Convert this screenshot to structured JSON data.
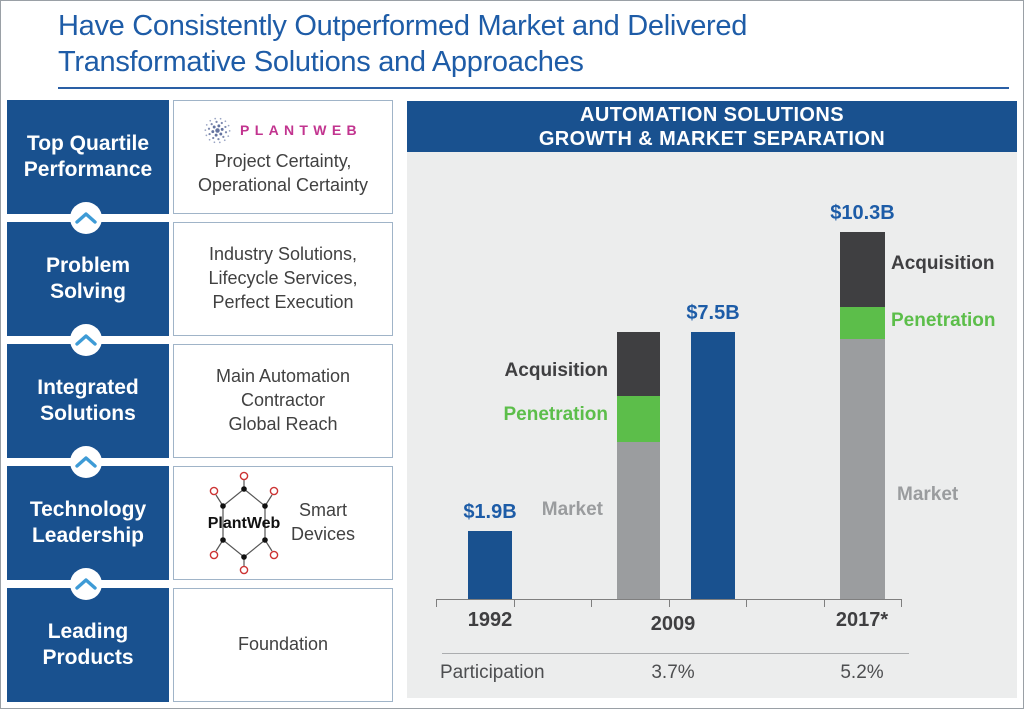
{
  "slide": {
    "title_line1": "Have Consistently Outperformed Market and Delivered",
    "title_line2": "Transformative Solutions and Approaches"
  },
  "pillars": [
    {
      "label": "Top Quartile\nPerformance",
      "logo_text": "PLANTWEB",
      "detail": "Project Certainty,\nOperational Certainty"
    },
    {
      "label": "Problem\nSolving",
      "detail": "Industry Solutions,\nLifecycle Services,\nPerfect Execution"
    },
    {
      "label": "Integrated\nSolutions",
      "detail": "Main Automation\nContractor\nGlobal Reach"
    },
    {
      "label": "Technology\nLeadership",
      "logo_text": "PlantWeb",
      "detail": "Smart\nDevices"
    },
    {
      "label": "Leading\nProducts",
      "detail": "Foundation"
    }
  ],
  "chart": {
    "header_line1": "AUTOMATION SOLUTIONS",
    "header_line2": "GROWTH & MARKET SEPARATION"
  },
  "chart_data": {
    "type": "bar",
    "title": "AUTOMATION SOLUTIONS GROWTH & MARKET SEPARATION",
    "unit": "USD billions",
    "categories": [
      "1992",
      "2009",
      "2017*"
    ],
    "bars": [
      {
        "id": "sales-1992",
        "group": "1992",
        "kind": "solid",
        "color_key": "blue",
        "total": 1.9,
        "label": "$1.9B"
      },
      {
        "id": "buildup-2009",
        "group": "2009",
        "kind": "stacked",
        "label": "",
        "segments": [
          {
            "name": "Market",
            "value": 4.4
          },
          {
            "name": "Penetration",
            "value": 1.3
          },
          {
            "name": "Acquisition",
            "value": 1.8
          }
        ]
      },
      {
        "id": "sales-2009",
        "group": "2009",
        "kind": "solid",
        "color_key": "blue",
        "total": 7.5,
        "label": "$7.5B"
      },
      {
        "id": "buildup-2017",
        "group": "2017*",
        "kind": "stacked",
        "label": "$10.3B",
        "segments": [
          {
            "name": "Market",
            "value": 7.3
          },
          {
            "name": "Penetration",
            "value": 0.9
          },
          {
            "name": "Acquisition",
            "value": 2.1
          }
        ]
      }
    ],
    "segment_colors": {
      "Market": "#9B9D9F",
      "Penetration": "#5CBE4A",
      "Acquisition": "#3F3F41",
      "blue": "#19518F"
    },
    "participation": {
      "row_label": "Participation",
      "values": [
        {
          "category": "2009",
          "value": "3.7%"
        },
        {
          "category": "2017*",
          "value": "5.2%"
        }
      ]
    },
    "layout_hints": {
      "grid": false,
      "legend": "segment labels beside bars",
      "baseline": "x-axis with tick marks"
    }
  }
}
